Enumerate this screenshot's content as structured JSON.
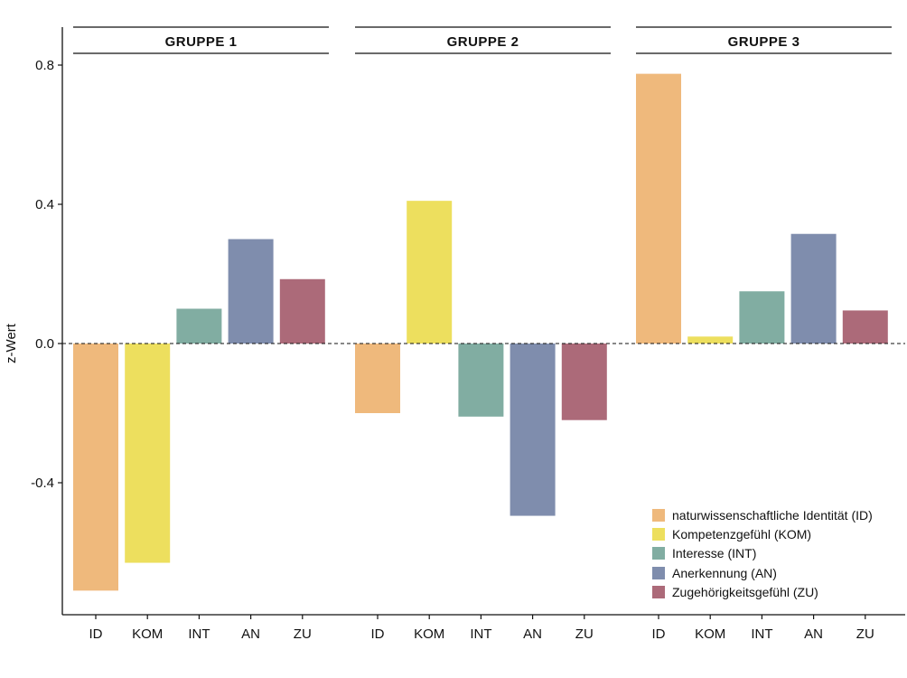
{
  "chart_data": {
    "type": "bar",
    "ylabel": "z-Wert",
    "xlabel": "",
    "ylim": [
      -0.78,
      0.92
    ],
    "yticks": [
      0.8,
      0.4,
      0.0,
      -0.4
    ],
    "ytick_labels": [
      "0.8",
      "0.4",
      "0.0",
      "-0.4"
    ],
    "categories": [
      "ID",
      "KOM",
      "INT",
      "AN",
      "ZU"
    ],
    "reference_line": 0.0,
    "colors": {
      "ID": "#EFB97C",
      "KOM": "#EDDF5E",
      "INT": "#81ADA2",
      "AN": "#7F8DAD",
      "ZU": "#AC6A79"
    },
    "panels": [
      {
        "title": "GRUPPE 1",
        "values": [
          -0.71,
          -0.63,
          0.1,
          0.3,
          0.185
        ]
      },
      {
        "title": "GRUPPE 2",
        "values": [
          -0.2,
          0.41,
          -0.21,
          -0.495,
          -0.22
        ]
      },
      {
        "title": "GRUPPE 3",
        "values": [
          0.775,
          0.02,
          0.15,
          0.315,
          0.095
        ]
      }
    ],
    "legend": {
      "position": "bottom-right",
      "items": [
        {
          "key": "ID",
          "label": "naturwissenschaftliche Identität (ID)",
          "color": "#EFB97C"
        },
        {
          "key": "KOM",
          "label": "Kompetenzgefühl (KOM)",
          "color": "#EDDF5E"
        },
        {
          "key": "INT",
          "label": "Interesse (INT)",
          "color": "#81ADA2"
        },
        {
          "key": "AN",
          "label": "Anerkennung (AN)",
          "color": "#7F8DAD"
        },
        {
          "key": "ZU",
          "label": "Zugehörigkeitsgefühl (ZU)",
          "color": "#AC6A79"
        }
      ]
    }
  }
}
